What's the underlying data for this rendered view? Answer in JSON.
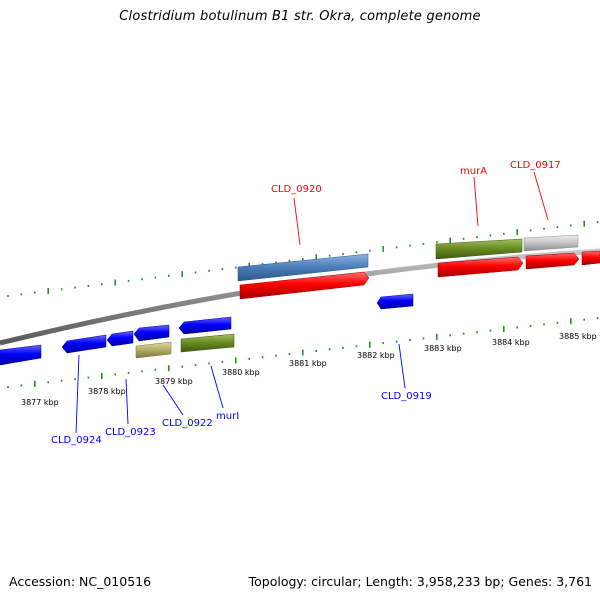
{
  "title": "Clostridium botulinum B1 str. Okra, complete genome",
  "footer": {
    "accession": "Accession: NC_010516",
    "topology": "Topology: circular; Length: 3,958,233 bp; Genes: 3,761"
  },
  "colors": {
    "backbone": "#7a7a7a",
    "tick": "#2e8b2e",
    "forward_gene": "#ff0000",
    "reverse_gene": "#0000ff",
    "olive_feature": "#6b8e23",
    "khaki_feature": "#b8b070",
    "grey_feature": "#c8c8c8",
    "steelblue_feature": "#4f81bd"
  },
  "kbp_labels": [
    "3877 kbp",
    "3878 kbp",
    "3879 kbp",
    "3880 kbp",
    "3881 kbp",
    "3882 kbp",
    "3883 kbp",
    "3884 kbp",
    "3885 kbp"
  ],
  "gene_labels": [
    {
      "text": "CLD_0920",
      "color": "#ff0000"
    },
    {
      "text": "murA",
      "color": "#ff0000"
    },
    {
      "text": "CLD_0917",
      "color": "#ff0000"
    },
    {
      "text": "CLD_0919",
      "color": "#0000ff"
    },
    {
      "text": "CLD_0924",
      "color": "#0000ff"
    },
    {
      "text": "CLD_0923",
      "color": "#0000ff"
    },
    {
      "text": "CLD_0922",
      "color": "#0000ff"
    },
    {
      "text": "murI",
      "color": "#0000ff"
    }
  ]
}
